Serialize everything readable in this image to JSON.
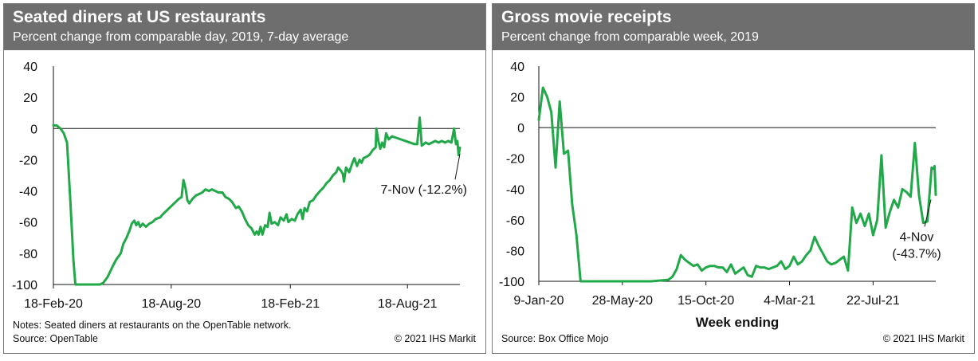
{
  "accent_color": "#21a848",
  "header_color": "#6e6e6e",
  "left_panel": {
    "title": "Seated diners at US restaurants",
    "subtitle": "Percent change from comparable day, 2019, 7-day average",
    "notes": "Notes: Seated diners at restaurants on the OpenTable network.",
    "source": "Source: OpenTable",
    "copyright": "© 2021 IHS Markit",
    "annotation": "7-Nov (-12.2%)"
  },
  "right_panel": {
    "title": "Gross movie receipts",
    "subtitle": "Percent change from comparable week, 2019",
    "source": "Source: Box Office Mojo",
    "copyright": "© 2021 IHS Markit",
    "xlabel": "Week ending",
    "annotation_line1": "4-Nov",
    "annotation_line2": "(-43.7%)"
  },
  "chart_data": [
    {
      "type": "line",
      "title": "Seated diners at US restaurants",
      "subtitle": "Percent change from comparable day, 2019, 7-day average",
      "ylim": [
        -100,
        40
      ],
      "yticks": [
        40,
        20,
        0,
        -20,
        -40,
        -60,
        -80,
        -100
      ],
      "xticks": [
        "18-Feb-20",
        "18-Aug-20",
        "18-Feb-21",
        "18-Aug-21"
      ],
      "x_start": "2020-02-18",
      "x_end": "2021-11-07",
      "zero_line": true,
      "grid": false,
      "series": [
        {
          "points": [
            [
              "2020-02-18",
              2
            ],
            [
              "2020-02-23",
              2
            ],
            [
              "2020-02-29",
              0
            ],
            [
              "2020-03-05",
              -3
            ],
            [
              "2020-03-10",
              -9
            ],
            [
              "2020-03-15",
              -45
            ],
            [
              "2020-03-20",
              -85
            ],
            [
              "2020-03-23",
              -100
            ],
            [
              "2020-04-15",
              -100
            ],
            [
              "2020-04-30",
              -100
            ],
            [
              "2020-05-05",
              -99
            ],
            [
              "2020-05-12",
              -95
            ],
            [
              "2020-05-20",
              -88
            ],
            [
              "2020-05-25",
              -84
            ],
            [
              "2020-06-01",
              -80
            ],
            [
              "2020-06-05",
              -74
            ],
            [
              "2020-06-10",
              -70
            ],
            [
              "2020-06-15",
              -65
            ],
            [
              "2020-06-18",
              -61
            ],
            [
              "2020-06-22",
              -59
            ],
            [
              "2020-06-25",
              -62
            ],
            [
              "2020-06-28",
              -60
            ],
            [
              "2020-07-01",
              -63
            ],
            [
              "2020-07-05",
              -61
            ],
            [
              "2020-07-10",
              -63
            ],
            [
              "2020-07-15",
              -61
            ],
            [
              "2020-07-20",
              -60
            ],
            [
              "2020-07-25",
              -58
            ],
            [
              "2020-08-01",
              -57
            ],
            [
              "2020-08-05",
              -55
            ],
            [
              "2020-08-10",
              -53
            ],
            [
              "2020-08-15",
              -51
            ],
            [
              "2020-08-20",
              -49
            ],
            [
              "2020-08-25",
              -47
            ],
            [
              "2020-08-30",
              -45
            ],
            [
              "2020-09-03",
              -44
            ],
            [
              "2020-09-06",
              -33
            ],
            [
              "2020-09-09",
              -38
            ],
            [
              "2020-09-12",
              -46
            ],
            [
              "2020-09-15",
              -48
            ],
            [
              "2020-09-20",
              -45
            ],
            [
              "2020-09-25",
              -43
            ],
            [
              "2020-09-30",
              -42
            ],
            [
              "2020-10-05",
              -41
            ],
            [
              "2020-10-10",
              -39
            ],
            [
              "2020-10-15",
              -40
            ],
            [
              "2020-10-20",
              -39
            ],
            [
              "2020-10-25",
              -40
            ],
            [
              "2020-10-30",
              -41
            ],
            [
              "2020-11-05",
              -41
            ],
            [
              "2020-11-10",
              -44
            ],
            [
              "2020-11-15",
              -45
            ],
            [
              "2020-11-20",
              -47
            ],
            [
              "2020-11-26",
              -51
            ],
            [
              "2020-11-30",
              -50
            ],
            [
              "2020-12-05",
              -53
            ],
            [
              "2020-12-10",
              -58
            ],
            [
              "2020-12-15",
              -62
            ],
            [
              "2020-12-20",
              -64
            ],
            [
              "2020-12-25",
              -68
            ],
            [
              "2020-12-28",
              -66
            ],
            [
              "2020-12-31",
              -68
            ],
            [
              "2021-01-03",
              -63
            ],
            [
              "2021-01-06",
              -68
            ],
            [
              "2021-01-10",
              -62
            ],
            [
              "2021-01-14",
              -63
            ],
            [
              "2021-01-17",
              -54
            ],
            [
              "2021-01-20",
              -61
            ],
            [
              "2021-01-25",
              -60
            ],
            [
              "2021-01-30",
              -62
            ],
            [
              "2021-02-03",
              -57
            ],
            [
              "2021-02-08",
              -59
            ],
            [
              "2021-02-12",
              -55
            ],
            [
              "2021-02-15",
              -60
            ],
            [
              "2021-02-20",
              -58
            ],
            [
              "2021-02-25",
              -59
            ],
            [
              "2021-03-01",
              -55
            ],
            [
              "2021-03-06",
              -52
            ],
            [
              "2021-03-09",
              -58
            ],
            [
              "2021-03-12",
              -51
            ],
            [
              "2021-03-16",
              -53
            ],
            [
              "2021-03-20",
              -47
            ],
            [
              "2021-03-25",
              -46
            ],
            [
              "2021-03-30",
              -43
            ],
            [
              "2021-04-05",
              -40
            ],
            [
              "2021-04-10",
              -38
            ],
            [
              "2021-04-15",
              -35
            ],
            [
              "2021-04-20",
              -33
            ],
            [
              "2021-04-25",
              -30
            ],
            [
              "2021-04-30",
              -28
            ],
            [
              "2021-05-03",
              -25
            ],
            [
              "2021-05-07",
              -27
            ],
            [
              "2021-05-10",
              -29
            ],
            [
              "2021-05-12",
              -34
            ],
            [
              "2021-05-15",
              -25
            ],
            [
              "2021-05-20",
              -28
            ],
            [
              "2021-05-25",
              -22
            ],
            [
              "2021-05-28",
              -19
            ],
            [
              "2021-06-01",
              -24
            ],
            [
              "2021-06-05",
              -20
            ],
            [
              "2021-06-08",
              -22
            ],
            [
              "2021-06-11",
              -19
            ],
            [
              "2021-06-16",
              -18
            ],
            [
              "2021-06-20",
              -17
            ],
            [
              "2021-06-25",
              -14
            ],
            [
              "2021-06-30",
              -12
            ],
            [
              "2021-07-01",
              0
            ],
            [
              "2021-07-04",
              -8
            ],
            [
              "2021-07-07",
              -13
            ],
            [
              "2021-07-10",
              -9
            ],
            [
              "2021-07-13",
              -12
            ],
            [
              "2021-07-16",
              -3
            ],
            [
              "2021-07-20",
              -7
            ],
            [
              "2021-07-25",
              -5
            ],
            [
              "2021-08-01",
              -6
            ],
            [
              "2021-08-08",
              -7
            ],
            [
              "2021-08-15",
              -8
            ],
            [
              "2021-08-22",
              -9
            ],
            [
              "2021-08-29",
              -10
            ],
            [
              "2021-09-02",
              -10
            ],
            [
              "2021-09-06",
              7
            ],
            [
              "2021-09-09",
              -11
            ],
            [
              "2021-09-15",
              -9
            ],
            [
              "2021-09-20",
              -10
            ],
            [
              "2021-09-25",
              -9
            ],
            [
              "2021-09-30",
              -8
            ],
            [
              "2021-10-05",
              -9
            ],
            [
              "2021-10-10",
              -8
            ],
            [
              "2021-10-15",
              -9
            ],
            [
              "2021-10-20",
              -8
            ],
            [
              "2021-10-25",
              -9
            ],
            [
              "2021-10-29",
              0
            ],
            [
              "2021-11-01",
              -10
            ],
            [
              "2021-11-03",
              -8
            ],
            [
              "2021-11-05",
              -17
            ],
            [
              "2021-11-07",
              -12.2
            ]
          ]
        }
      ]
    },
    {
      "type": "line",
      "title": "Gross movie receipts",
      "subtitle": "Percent change from comparable week, 2019",
      "xlabel": "Week ending",
      "ylim": [
        -100,
        40
      ],
      "yticks": [
        40,
        20,
        0,
        -20,
        -40,
        -60,
        -80,
        -100
      ],
      "xticks": [
        "9-Jan-20",
        "28-May-20",
        "15-Oct-20",
        "4-Mar-21",
        "22-Jul-21"
      ],
      "x_start": "2020-01-09",
      "x_end": "2021-11-04",
      "zero_line": true,
      "grid": false,
      "series": [
        {
          "points": [
            [
              "2020-01-09",
              5
            ],
            [
              "2020-01-16",
              26
            ],
            [
              "2020-01-23",
              20
            ],
            [
              "2020-01-30",
              10
            ],
            [
              "2020-02-06",
              -26
            ],
            [
              "2020-02-13",
              17
            ],
            [
              "2020-02-20",
              -17
            ],
            [
              "2020-02-27",
              -15
            ],
            [
              "2020-03-05",
              -50
            ],
            [
              "2020-03-12",
              -70
            ],
            [
              "2020-03-19",
              -100
            ],
            [
              "2020-04-15",
              -100
            ],
            [
              "2020-06-01",
              -100
            ],
            [
              "2020-07-15",
              -100
            ],
            [
              "2020-08-13",
              -99
            ],
            [
              "2020-08-20",
              -97
            ],
            [
              "2020-08-27",
              -92
            ],
            [
              "2020-09-03",
              -83
            ],
            [
              "2020-09-10",
              -86
            ],
            [
              "2020-09-17",
              -88
            ],
            [
              "2020-09-24",
              -90
            ],
            [
              "2020-10-01",
              -89
            ],
            [
              "2020-10-08",
              -93
            ],
            [
              "2020-10-15",
              -91
            ],
            [
              "2020-10-22",
              -90
            ],
            [
              "2020-10-29",
              -90
            ],
            [
              "2020-11-05",
              -91
            ],
            [
              "2020-11-12",
              -91
            ],
            [
              "2020-11-19",
              -94
            ],
            [
              "2020-11-26",
              -89
            ],
            [
              "2020-12-03",
              -95
            ],
            [
              "2020-12-10",
              -93
            ],
            [
              "2020-12-17",
              -91
            ],
            [
              "2020-12-24",
              -96
            ],
            [
              "2020-12-31",
              -97
            ],
            [
              "2021-01-07",
              -90
            ],
            [
              "2021-01-14",
              -91
            ],
            [
              "2021-01-21",
              -91
            ],
            [
              "2021-01-28",
              -92
            ],
            [
              "2021-02-04",
              -91
            ],
            [
              "2021-02-11",
              -90
            ],
            [
              "2021-02-18",
              -87
            ],
            [
              "2021-02-25",
              -92
            ],
            [
              "2021-03-04",
              -90
            ],
            [
              "2021-03-11",
              -84
            ],
            [
              "2021-03-18",
              -89
            ],
            [
              "2021-03-25",
              -87
            ],
            [
              "2021-04-01",
              -83
            ],
            [
              "2021-04-08",
              -80
            ],
            [
              "2021-04-15",
              -71
            ],
            [
              "2021-04-22",
              -77
            ],
            [
              "2021-04-29",
              -82
            ],
            [
              "2021-05-06",
              -87
            ],
            [
              "2021-05-13",
              -89
            ],
            [
              "2021-05-20",
              -88
            ],
            [
              "2021-05-27",
              -86
            ],
            [
              "2021-06-03",
              -84
            ],
            [
              "2021-06-10",
              -93
            ],
            [
              "2021-06-17",
              -52
            ],
            [
              "2021-06-24",
              -62
            ],
            [
              "2021-07-01",
              -56
            ],
            [
              "2021-07-08",
              -64
            ],
            [
              "2021-07-15",
              -56
            ],
            [
              "2021-07-22",
              -70
            ],
            [
              "2021-07-29",
              -60
            ],
            [
              "2021-08-05",
              -18
            ],
            [
              "2021-08-12",
              -65
            ],
            [
              "2021-08-19",
              -55
            ],
            [
              "2021-08-26",
              -47
            ],
            [
              "2021-09-02",
              -52
            ],
            [
              "2021-09-09",
              -40
            ],
            [
              "2021-09-16",
              -42
            ],
            [
              "2021-09-23",
              -45
            ],
            [
              "2021-09-30",
              -10
            ],
            [
              "2021-10-07",
              -44
            ],
            [
              "2021-10-14",
              -62
            ],
            [
              "2021-10-21",
              -61
            ],
            [
              "2021-10-28",
              -26
            ],
            [
              "2021-11-01",
              -27
            ],
            [
              "2021-11-02",
              -25
            ],
            [
              "2021-11-04",
              -43.7
            ]
          ]
        }
      ]
    }
  ]
}
